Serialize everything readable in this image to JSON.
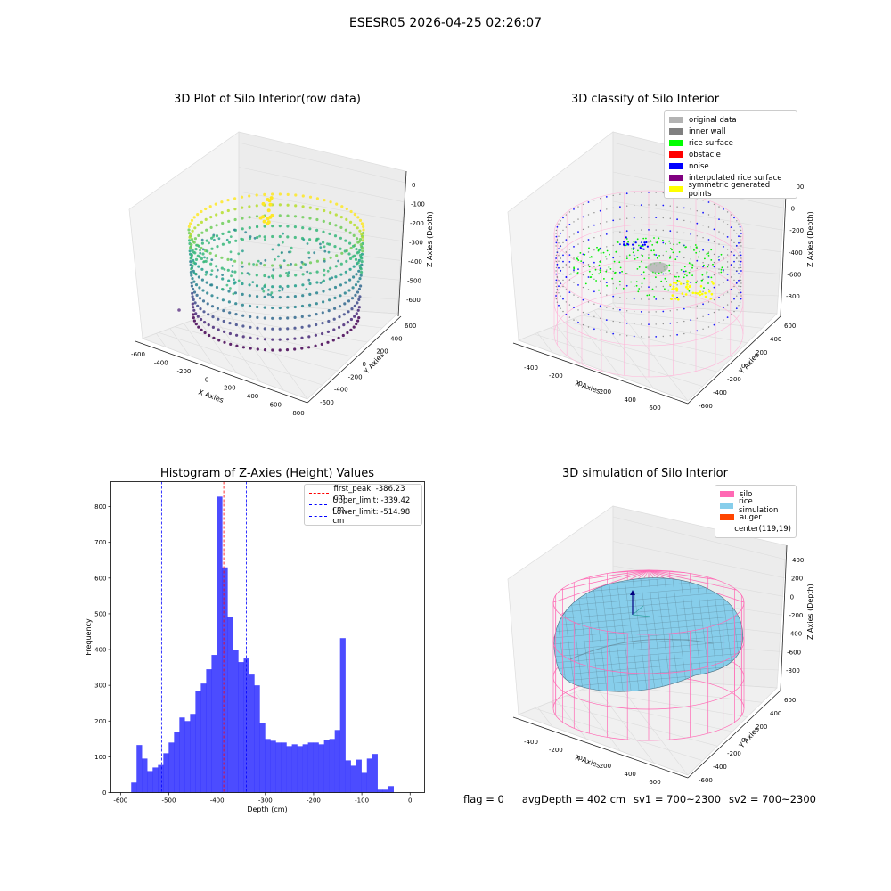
{
  "suptitle": "ESESR05 2026-04-25 02:26:07",
  "panels": {
    "p1": {
      "title": "3D Plot of Silo Interior(row data)",
      "xlabel": "X Axies",
      "ylabel": "Y Axies",
      "zlabel": "Z Axies (Depth)",
      "xticks": [
        "-600",
        "-400",
        "-200",
        "0",
        "200",
        "400",
        "600",
        "800"
      ],
      "yticks": [
        "-600",
        "-400",
        "-200",
        "0",
        "200",
        "400",
        "600"
      ],
      "zticks": [
        "0",
        "-100",
        "-200",
        "-300",
        "-400",
        "-500",
        "-600"
      ]
    },
    "p2": {
      "title": "3D classify of Silo Interior",
      "xlabel": "X Axies",
      "ylabel": "Y Axies",
      "zlabel": "Z Axies (Depth)",
      "xticks": [
        "-400",
        "-200",
        "0",
        "200",
        "400",
        "600"
      ],
      "yticks": [
        "-600",
        "-400",
        "-200",
        "0",
        "200",
        "400",
        "600"
      ],
      "zticks": [
        "200",
        "0",
        "-200",
        "-400",
        "-600",
        "-800"
      ],
      "legend": [
        {
          "label": "original data",
          "color": "#b3b3b3"
        },
        {
          "label": "inner wall",
          "color": "#808080"
        },
        {
          "label": "rice surface",
          "color": "#00ff00"
        },
        {
          "label": "obstacle",
          "color": "#ff0000"
        },
        {
          "label": "noise",
          "color": "#0000ff"
        },
        {
          "label": "interpolated rice surface",
          "color": "#800080"
        },
        {
          "label": "symmetric generated points",
          "color": "#ffff00"
        }
      ]
    },
    "p4": {
      "title": "3D simulation of Silo Interior",
      "xlabel": "X Axies",
      "ylabel": "Y Axies",
      "zlabel": "Z Axies (Depth)",
      "xticks": [
        "-400",
        "-200",
        "0",
        "200",
        "400",
        "600"
      ],
      "yticks": [
        "-600",
        "-400",
        "-200",
        "0",
        "200",
        "400",
        "600"
      ],
      "zticks": [
        "400",
        "200",
        "0",
        "-200",
        "-400",
        "-600",
        "-800"
      ],
      "legend": [
        {
          "label": "silo",
          "color": "#ff69b4"
        },
        {
          "label": "rice simulation",
          "color": "#87ceeb"
        },
        {
          "label": "auger",
          "color": "#ff4500"
        },
        {
          "label": "center(119,19)",
          "color": "#ffffff"
        }
      ]
    }
  },
  "chart_data": {
    "type": "bar",
    "title": "Histogram of Z-Axies (Height) Values",
    "xlabel": "Depth (cm)",
    "ylabel": "Frequency",
    "xlim": [
      -620,
      30
    ],
    "ylim": [
      0,
      870
    ],
    "xticks": [
      -600,
      -500,
      -400,
      -300,
      -200,
      -100,
      0
    ],
    "yticks": [
      0,
      100,
      200,
      300,
      400,
      500,
      600,
      700,
      800
    ],
    "bin_width": 11.1,
    "bin_start": -578,
    "bar_color": "#0000ff",
    "values": [
      28,
      133,
      95,
      60,
      70,
      77,
      110,
      140,
      170,
      210,
      200,
      220,
      285,
      305,
      345,
      385,
      828,
      630,
      490,
      400,
      365,
      375,
      330,
      300,
      195,
      150,
      145,
      140,
      140,
      130,
      135,
      130,
      135,
      140,
      140,
      135,
      148,
      150,
      175,
      432,
      90,
      75,
      92,
      55,
      95,
      108,
      8,
      8,
      18
    ],
    "vlines": [
      {
        "label": "first_peak: -386.23 cm",
        "x": -386.23,
        "color": "#ff0000"
      },
      {
        "label": "Upper_limit: -339.42 cm",
        "x": -339.42,
        "color": "#0000ff"
      },
      {
        "label": "Lower_limit: -514.98 cm",
        "x": -514.98,
        "color": "#0000ff"
      }
    ]
  },
  "footer": {
    "flag": "flag = 0",
    "avg": "avgDepth = 402 cm",
    "sv1": "sv1 = 700~2300",
    "sv2": "sv2 = 700~2300"
  }
}
